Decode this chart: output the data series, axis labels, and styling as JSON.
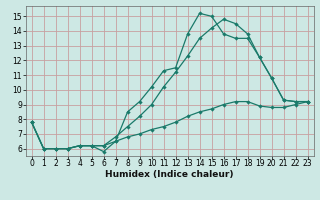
{
  "xlabel": "Humidex (Indice chaleur)",
  "bg_color": "#cde8e4",
  "grid_color": "#c8a0a0",
  "line_color": "#1a7a6a",
  "xlim": [
    -0.5,
    23.5
  ],
  "ylim": [
    5.5,
    15.7
  ],
  "xticks": [
    0,
    1,
    2,
    3,
    4,
    5,
    6,
    7,
    8,
    9,
    10,
    11,
    12,
    13,
    14,
    15,
    16,
    17,
    18,
    19,
    20,
    21,
    22,
    23
  ],
  "yticks": [
    6,
    7,
    8,
    9,
    10,
    11,
    12,
    13,
    14,
    15
  ],
  "line1_x": [
    0,
    1,
    2,
    3,
    4,
    5,
    6,
    7,
    8,
    9,
    10,
    11,
    12,
    13,
    14,
    15,
    16,
    17,
    18,
    19,
    20,
    21,
    22,
    23
  ],
  "line1_y": [
    7.8,
    6.0,
    6.0,
    6.0,
    6.2,
    6.2,
    5.8,
    6.5,
    8.5,
    9.2,
    10.2,
    11.3,
    11.5,
    13.8,
    15.2,
    15.0,
    13.8,
    13.5,
    13.5,
    12.2,
    10.8,
    9.3,
    9.2,
    9.2
  ],
  "line2_x": [
    0,
    1,
    2,
    3,
    4,
    5,
    6,
    7,
    8,
    9,
    10,
    11,
    12,
    13,
    14,
    15,
    16,
    17,
    18,
    19,
    20,
    21,
    22,
    23
  ],
  "line2_y": [
    7.8,
    6.0,
    6.0,
    6.0,
    6.2,
    6.2,
    6.2,
    6.8,
    7.5,
    8.2,
    9.0,
    10.2,
    11.2,
    12.3,
    13.5,
    14.2,
    14.8,
    14.5,
    13.8,
    12.2,
    10.8,
    9.3,
    9.2,
    9.2
  ],
  "line3_x": [
    0,
    1,
    2,
    3,
    4,
    5,
    6,
    7,
    8,
    9,
    10,
    11,
    12,
    13,
    14,
    15,
    16,
    17,
    18,
    19,
    20,
    21,
    22,
    23
  ],
  "line3_y": [
    7.8,
    6.0,
    6.0,
    6.0,
    6.2,
    6.2,
    6.2,
    6.5,
    6.8,
    7.0,
    7.3,
    7.5,
    7.8,
    8.2,
    8.5,
    8.7,
    9.0,
    9.2,
    9.2,
    8.9,
    8.8,
    8.8,
    9.0,
    9.2
  ],
  "tick_fontsize": 5.5,
  "xlabel_fontsize": 6.5
}
